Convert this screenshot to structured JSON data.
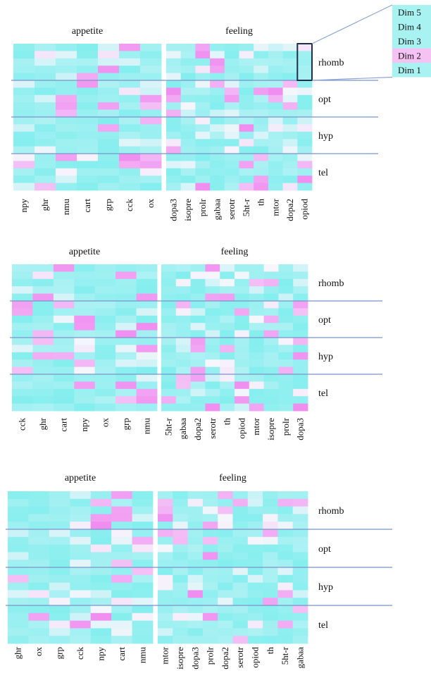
{
  "colors": {
    "low": "#84eeee",
    "mid": "#f6f6fc",
    "high": "#f08cf0",
    "separator": "#7b95c9",
    "legend_line": "#8da4d8",
    "highlight_box": "#1f2f4a",
    "dim_box": "#a8f2f2",
    "dim_box_highlight": "#f6c2f4"
  },
  "legend": {
    "dims": [
      "Dim 5",
      "Dim 4",
      "Dim 3",
      "Dim 2",
      "Dim 1"
    ],
    "highlighted": "Dim 2"
  },
  "chart_data": [
    {
      "type": "heatmap",
      "group_labels": [
        "appetite",
        "feeling"
      ],
      "appetite_genes": [
        "npy",
        "ghr",
        "nmu",
        "cart",
        "grp",
        "cck",
        "ox"
      ],
      "feeling_genes": [
        "dopa3",
        "isopre",
        "prolr",
        "gabaa",
        "serotr",
        "5ht-r",
        "th",
        "mtor",
        "dopa2",
        "opiod"
      ],
      "regions": [
        "rhomb",
        "opt",
        "hyp",
        "tel"
      ],
      "dims_per_region": 5,
      "highlight": {
        "region": "rhomb",
        "gene": "opiod"
      }
    },
    {
      "type": "heatmap",
      "group_labels": [
        "appetite",
        "feeling"
      ],
      "appetite_genes": [
        "cck",
        "ghr",
        "cart",
        "npy",
        "ox",
        "grp",
        "nmu"
      ],
      "feeling_genes": [
        "5ht-r",
        "gabaa",
        "dopa2",
        "serotr",
        "th",
        "opiod",
        "mtor",
        "isopre",
        "prolr",
        "dopa3"
      ],
      "regions": [
        "rhomb",
        "opt",
        "hyp",
        "tel"
      ],
      "dims_per_region": 5
    },
    {
      "type": "heatmap",
      "group_labels": [
        "appetite",
        "feeling"
      ],
      "appetite_genes": [
        "ghr",
        "ox",
        "grp",
        "cck",
        "npy",
        "cart",
        "nmu"
      ],
      "feeling_genes": [
        "mtor",
        "isopre",
        "dopa3",
        "prolr",
        "dopa2",
        "serotr",
        "opiod",
        "th",
        "5ht-r",
        "gabaa"
      ],
      "regions": [
        "rhomb",
        "opt",
        "hyp",
        "tel"
      ],
      "dims_per_region": 5
    }
  ]
}
